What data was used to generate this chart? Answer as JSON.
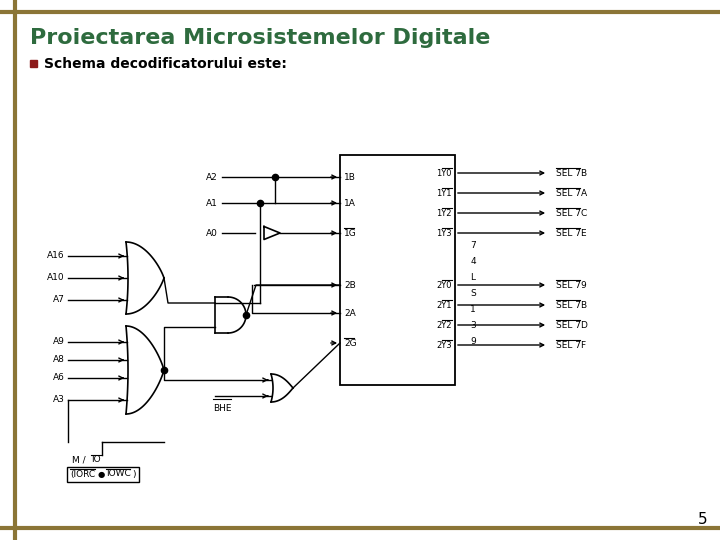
{
  "title": "Proiectarea Microsistemelor Digitale",
  "subtitle": "Schema decodificatorului este:",
  "bg_color": "#ffffff",
  "title_color": "#2E6B3E",
  "border_color": "#8B7536",
  "page_number": "5",
  "chip_center_labels": [
    "7",
    "4",
    "L",
    "S",
    "1",
    "3",
    "9"
  ],
  "chip_in_left": [
    "1B",
    "1A",
    "1G",
    "2B",
    "2A",
    "2G"
  ],
  "chip_out_right_1": [
    "1Y0",
    "1Y1",
    "1Y2",
    "1Y3"
  ],
  "chip_out_right_2": [
    "2Y0",
    "2Y1",
    "2Y2",
    "2Y3"
  ],
  "sel_labels_1": [
    "SEL 7B",
    "SEL 7A",
    "SEL 7C",
    "SEL 7E"
  ],
  "sel_labels_2": [
    "SEL 79",
    "SEL 7B",
    "SEL 7D",
    "SEL 7F"
  ],
  "inputs_A_top": [
    "A2",
    "A1",
    "A0"
  ],
  "inputs_or1": [
    "A16",
    "A10",
    "A7"
  ],
  "inputs_or2": [
    "A9",
    "A8",
    "A6",
    "A3"
  ],
  "bhe_label": "BHE",
  "mio_line1": "M / IO",
  "mio_line2": "(IORC  ●  IOWC  )"
}
